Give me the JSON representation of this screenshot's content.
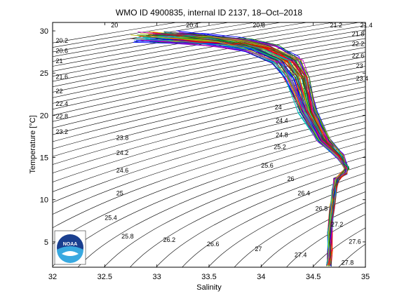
{
  "chart_data": {
    "type": "scatter",
    "title": "WMO ID 4900835, internal ID 2137, 18–Oct–2018",
    "xlabel": "Salinity",
    "ylabel": "Temperature [°C]",
    "xlim": [
      32,
      35
    ],
    "ylim": [
      2,
      31
    ],
    "xticks": [
      "32",
      "32.5",
      "33",
      "33.5",
      "34",
      "34.5",
      "35"
    ],
    "yticks": [
      "5",
      "10",
      "15",
      "20",
      "25",
      "30"
    ],
    "grid": false,
    "logo_text": "NOAA",
    "isopycnal_labels": [
      {
        "label": "20",
        "s": 32.56,
        "t": 30.4
      },
      {
        "label": "20.4",
        "s": 33.28,
        "t": 30.4
      },
      {
        "label": "20.8",
        "s": 33.92,
        "t": 30.4
      },
      {
        "label": "21.2",
        "s": 34.66,
        "t": 30.4
      },
      {
        "label": "21.4",
        "s": 34.95,
        "t": 30.4
      },
      {
        "label": "20.2",
        "s": 32.03,
        "t": 28.6
      },
      {
        "label": "20.6",
        "s": 32.03,
        "t": 27.4
      },
      {
        "label": "21",
        "s": 32.03,
        "t": 26.2
      },
      {
        "label": "21.6",
        "s": 32.03,
        "t": 24.3
      },
      {
        "label": "22",
        "s": 32.03,
        "t": 22.6
      },
      {
        "label": "22.4",
        "s": 32.03,
        "t": 21.1
      },
      {
        "label": "22.8",
        "s": 32.03,
        "t": 19.6
      },
      {
        "label": "23.2",
        "s": 32.03,
        "t": 17.8
      },
      {
        "label": "21.8",
        "s": 34.87,
        "t": 29.4
      },
      {
        "label": "22.2",
        "s": 34.87,
        "t": 28.2
      },
      {
        "label": "22.6",
        "s": 34.87,
        "t": 26.8
      },
      {
        "label": "23",
        "s": 34.91,
        "t": 25.6
      },
      {
        "label": "23.4",
        "s": 34.91,
        "t": 24.1
      },
      {
        "label": "23.8",
        "s": 32.61,
        "t": 17.1
      },
      {
        "label": "24.2",
        "s": 32.61,
        "t": 15.3
      },
      {
        "label": "24.6",
        "s": 32.61,
        "t": 13.2
      },
      {
        "label": "25",
        "s": 32.61,
        "t": 10.5
      },
      {
        "label": "25.4",
        "s": 32.5,
        "t": 7.6
      },
      {
        "label": "25.8",
        "s": 32.66,
        "t": 5.4
      },
      {
        "label": "26.2",
        "s": 33.06,
        "t": 5.0
      },
      {
        "label": "26.6",
        "s": 33.48,
        "t": 4.5
      },
      {
        "label": "27",
        "s": 33.94,
        "t": 3.9
      },
      {
        "label": "27.4",
        "s": 34.32,
        "t": 3.2
      },
      {
        "label": "27.8",
        "s": 34.77,
        "t": 2.3
      },
      {
        "label": "24",
        "s": 34.13,
        "t": 20.7
      },
      {
        "label": "24.4",
        "s": 34.14,
        "t": 19.1
      },
      {
        "label": "24.8",
        "s": 34.14,
        "t": 17.4
      },
      {
        "label": "25.2",
        "s": 34.12,
        "t": 16.0
      },
      {
        "label": "25.6",
        "s": 34.0,
        "t": 13.8
      },
      {
        "label": "26",
        "s": 34.25,
        "t": 12.2
      },
      {
        "label": "26.4",
        "s": 34.35,
        "t": 10.5
      },
      {
        "label": "26.8",
        "s": 34.52,
        "t": 8.7
      },
      {
        "label": "27.2",
        "s": 34.67,
        "t": 6.8
      },
      {
        "label": "27.6",
        "s": 34.84,
        "t": 4.8
      }
    ],
    "series": [
      {
        "s": [
          33.0,
          33.3,
          33.7,
          34.0,
          34.25,
          34.35,
          34.45,
          34.6,
          34.75,
          34.82,
          34.8,
          34.72,
          34.7,
          34.68,
          34.66,
          34.66,
          34.65
        ],
        "t": [
          29.3,
          29.1,
          28.7,
          28.0,
          26.5,
          24.5,
          20.5,
          17.0,
          15.2,
          13.8,
          13.2,
          12.4,
          11.0,
          9.0,
          6.0,
          4.0,
          2.3
        ]
      }
    ],
    "colors": [
      "#0000ff",
      "#008000",
      "#ff0000",
      "#00bfbf",
      "#bf00bf",
      "#bfbf00",
      "#404040"
    ]
  }
}
